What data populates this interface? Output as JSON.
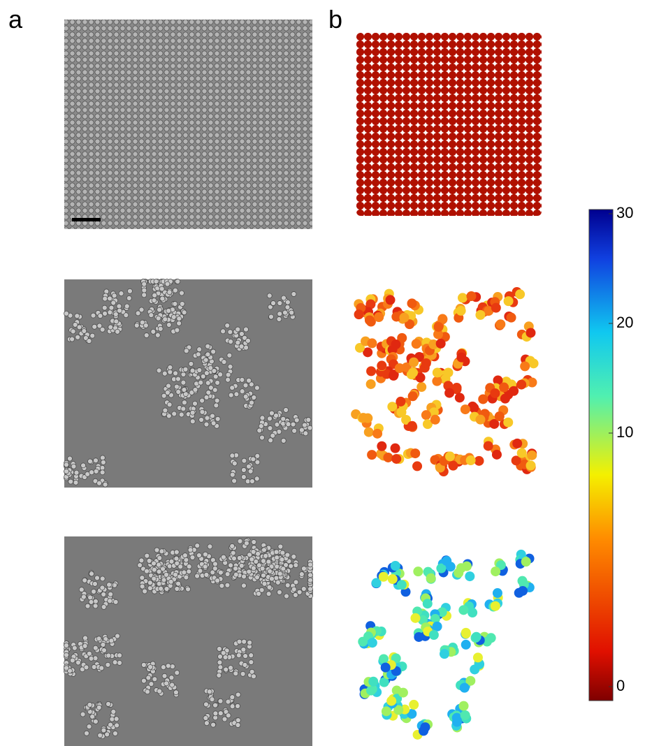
{
  "panels": {
    "a": {
      "label": "a"
    },
    "b": {
      "label": "b"
    }
  },
  "colorbar": {
    "ticks": [
      "30",
      "20",
      "10",
      "0"
    ]
  }
}
